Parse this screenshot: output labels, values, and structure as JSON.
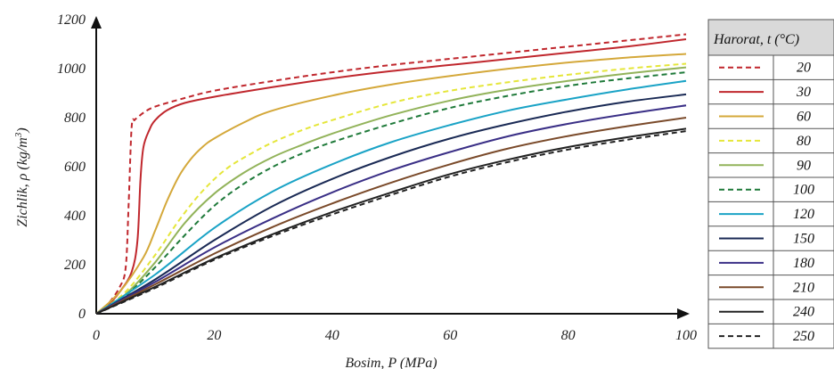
{
  "chart_data": {
    "type": "line",
    "xlabel_prefix": "Bosim, ",
    "xlabel_sym": "P",
    "xlabel_unit": " (MPa)",
    "ylabel_prefix": "Zichlik, ",
    "ylabel_sym": "ρ",
    "ylabel_unit": " (kg/m",
    "ylabel_sup": "3",
    "ylabel_close": ")",
    "xlim": [
      0,
      100
    ],
    "ylim": [
      0,
      1200
    ],
    "xticks": [
      "0",
      "20",
      "40",
      "60",
      "80",
      "100"
    ],
    "yticks": [
      "0",
      "200",
      "400",
      "600",
      "800",
      "1000",
      "1200"
    ],
    "grid": false,
    "legend_title": "Harorat, t (°C)",
    "legend_position": "right",
    "series": [
      {
        "name": "20",
        "color": "#c0272d",
        "dash": true,
        "x": [
          0,
          2,
          4,
          5,
          5.5,
          6,
          6.5,
          7,
          8,
          10,
          15,
          20,
          30,
          40,
          50,
          60,
          70,
          80,
          90,
          100
        ],
        "y": [
          0,
          40,
          110,
          190,
          450,
          760,
          790,
          800,
          820,
          845,
          880,
          910,
          950,
          985,
          1015,
          1040,
          1065,
          1090,
          1115,
          1140
        ]
      },
      {
        "name": "30",
        "color": "#c0272d",
        "dash": false,
        "x": [
          0,
          2,
          4,
          6,
          7,
          7.5,
          8,
          9,
          10,
          12,
          15,
          20,
          30,
          40,
          50,
          60,
          70,
          80,
          90,
          100
        ],
        "y": [
          0,
          35,
          90,
          170,
          300,
          550,
          680,
          750,
          790,
          830,
          860,
          885,
          925,
          960,
          990,
          1015,
          1040,
          1065,
          1090,
          1120
        ]
      },
      {
        "name": "60",
        "color": "#d4a83a",
        "dash": false,
        "x": [
          0,
          4,
          8,
          10,
          12,
          14,
          16,
          18,
          20,
          25,
          30,
          40,
          50,
          60,
          70,
          80,
          90,
          100
        ],
        "y": [
          0,
          90,
          230,
          340,
          460,
          560,
          630,
          680,
          715,
          780,
          830,
          890,
          935,
          970,
          1000,
          1025,
          1045,
          1060
        ]
      },
      {
        "name": "80",
        "color": "#e5e63a",
        "dash": true,
        "x": [
          0,
          5,
          10,
          14,
          18,
          22,
          26,
          30,
          35,
          40,
          50,
          60,
          70,
          80,
          90,
          100
        ],
        "y": [
          0,
          90,
          240,
          380,
          500,
          590,
          650,
          700,
          750,
          790,
          860,
          910,
          945,
          975,
          1000,
          1020
        ]
      },
      {
        "name": "90",
        "color": "#92b35a",
        "dash": false,
        "x": [
          0,
          5,
          10,
          15,
          20,
          25,
          30,
          35,
          40,
          50,
          60,
          70,
          80,
          90,
          100
        ],
        "y": [
          0,
          80,
          210,
          370,
          490,
          575,
          640,
          690,
          735,
          810,
          870,
          915,
          950,
          980,
          1005
        ]
      },
      {
        "name": "100",
        "color": "#1f7a3a",
        "dash": true,
        "x": [
          0,
          5,
          10,
          15,
          20,
          25,
          30,
          35,
          40,
          50,
          60,
          70,
          80,
          90,
          100
        ],
        "y": [
          0,
          75,
          190,
          320,
          440,
          530,
          600,
          655,
          700,
          775,
          840,
          890,
          930,
          960,
          985
        ]
      },
      {
        "name": "120",
        "color": "#1aa3c6",
        "dash": false,
        "x": [
          0,
          10,
          20,
          30,
          40,
          50,
          60,
          70,
          80,
          90,
          100
        ],
        "y": [
          0,
          160,
          350,
          500,
          610,
          700,
          770,
          830,
          875,
          915,
          950
        ]
      },
      {
        "name": "150",
        "color": "#1a2a55",
        "dash": false,
        "x": [
          0,
          10,
          20,
          30,
          40,
          50,
          60,
          70,
          80,
          90,
          100
        ],
        "y": [
          0,
          140,
          300,
          440,
          550,
          640,
          715,
          775,
          825,
          865,
          895
        ]
      },
      {
        "name": "180",
        "color": "#3a2f86",
        "dash": false,
        "x": [
          0,
          10,
          20,
          30,
          40,
          50,
          60,
          70,
          80,
          90,
          100
        ],
        "y": [
          0,
          130,
          270,
          390,
          495,
          585,
          660,
          725,
          775,
          815,
          850
        ]
      },
      {
        "name": "210",
        "color": "#7a4a2a",
        "dash": false,
        "x": [
          0,
          10,
          20,
          30,
          40,
          50,
          60,
          70,
          80,
          90,
          100
        ],
        "y": [
          0,
          120,
          245,
          355,
          450,
          535,
          610,
          675,
          725,
          765,
          800
        ]
      },
      {
        "name": "240",
        "color": "#222222",
        "dash": false,
        "x": [
          0,
          10,
          20,
          30,
          40,
          50,
          60,
          70,
          80,
          90,
          100
        ],
        "y": [
          0,
          110,
          225,
          325,
          415,
          495,
          570,
          630,
          680,
          720,
          755
        ]
      },
      {
        "name": "250",
        "color": "#222222",
        "dash": true,
        "x": [
          0,
          10,
          20,
          30,
          40,
          50,
          60,
          70,
          80,
          90,
          100
        ],
        "y": [
          0,
          105,
          220,
          318,
          405,
          485,
          560,
          620,
          670,
          710,
          745
        ]
      }
    ]
  }
}
